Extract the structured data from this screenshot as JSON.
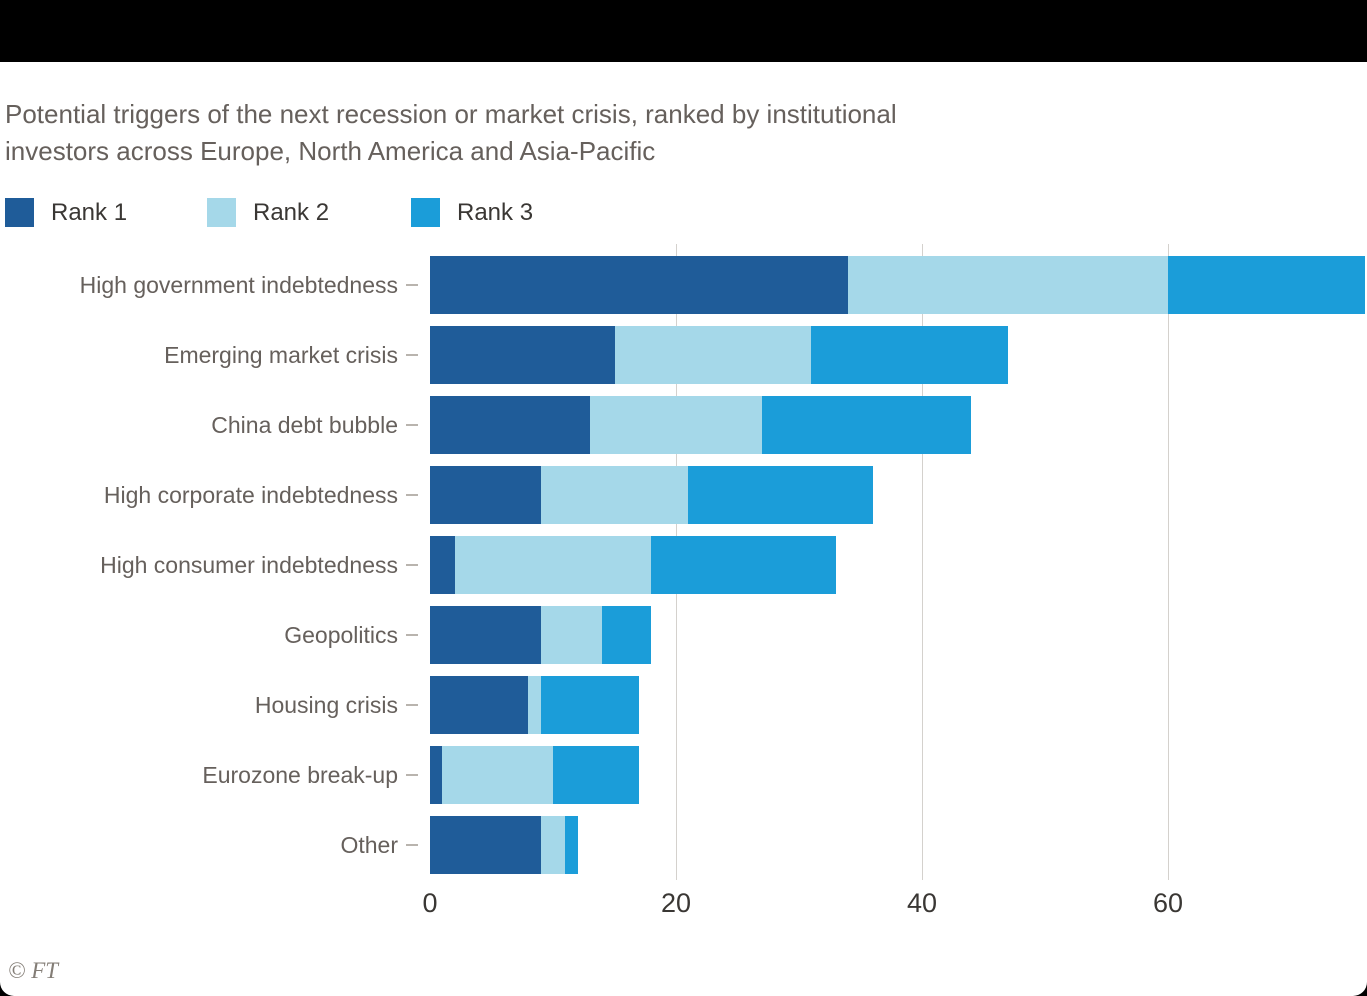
{
  "header": {
    "title_line1": "Potential triggers of the next recession or market crisis, ranked by institutional",
    "title_line2": "investors across Europe, North America and Asia-Pacific"
  },
  "legend": [
    {
      "label": "Rank 1",
      "color": "#1f5c99"
    },
    {
      "label": "Rank 2",
      "color": "#a5d8e9"
    },
    {
      "label": "Rank 3",
      "color": "#1b9dd9"
    }
  ],
  "footer": {
    "attribution": "© FT"
  },
  "chart_data": {
    "type": "bar",
    "orientation": "horizontal",
    "stacked": true,
    "title": "Potential triggers of the next recession or market crisis, ranked by institutional investors across Europe, North America and Asia-Pacific",
    "categories": [
      "High government indebtedness",
      "Emerging market crisis",
      "China debt bubble",
      "High corporate indebtedness",
      "High consumer indebtedness",
      "Geopolitics",
      "Housing crisis",
      "Eurozone break-up",
      "Other"
    ],
    "series": [
      {
        "name": "Rank 1",
        "color": "#1f5c99",
        "values": [
          34,
          15,
          13,
          9,
          2,
          9,
          8,
          1,
          9
        ]
      },
      {
        "name": "Rank 2",
        "color": "#a5d8e9",
        "values": [
          26,
          16,
          14,
          12,
          16,
          5,
          1,
          9,
          2
        ]
      },
      {
        "name": "Rank 3",
        "color": "#1b9dd9",
        "values": [
          16,
          16,
          17,
          15,
          15,
          4,
          8,
          7,
          1
        ]
      }
    ],
    "totals": [
      76,
      47,
      44,
      36,
      33,
      18,
      17,
      17,
      12
    ],
    "x_ticks": [
      0,
      20,
      40,
      60
    ],
    "xlim": [
      0,
      76
    ],
    "grid": "vertical",
    "legend_position": "top",
    "note": "Top bar is clipped at the right edge of the image"
  }
}
